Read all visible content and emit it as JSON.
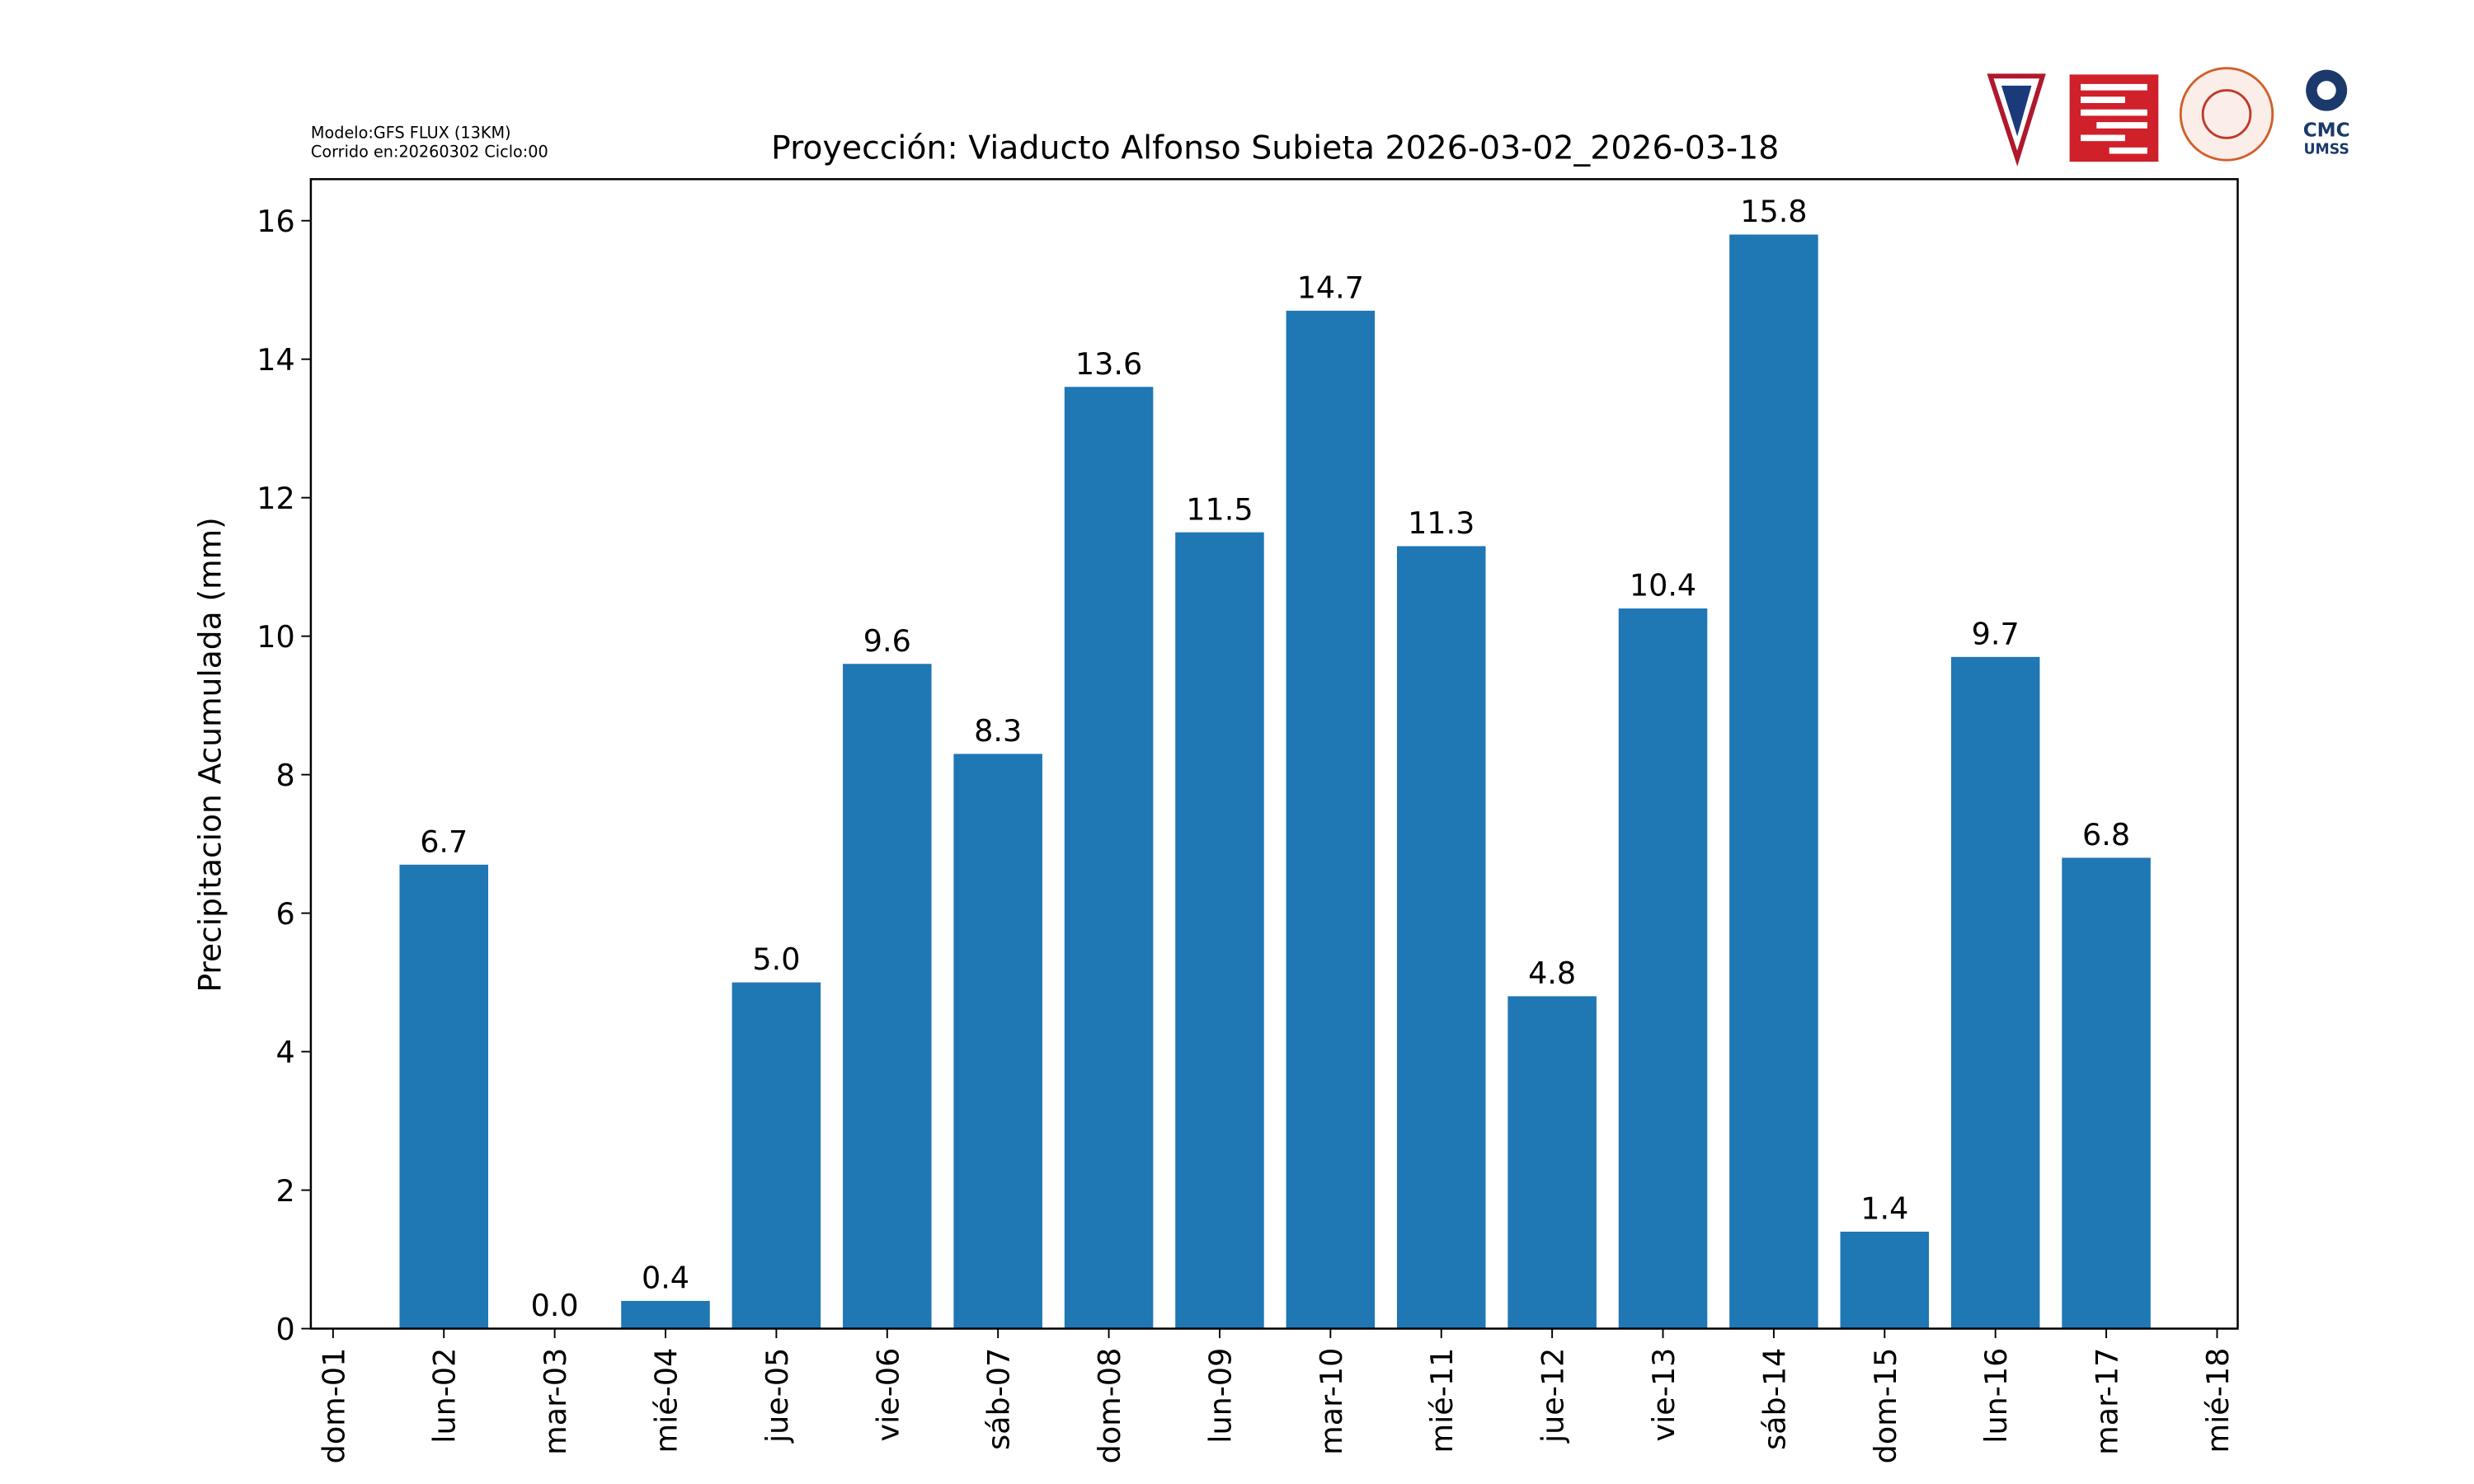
{
  "chart_data": {
    "type": "bar",
    "title": "Proyección: Viaducto Alfonso Subieta  2026-03-02_2026-03-18",
    "model_info": [
      "Modelo:GFS FLUX (13KM)",
      "Corrido en:20260302 Ciclo:00"
    ],
    "logo_text": [
      "CMC",
      "UMSS"
    ],
    "y_label": "Precipitacion Acumulada (mm)",
    "categories": [
      "dom-01",
      "lun-02",
      "mar-03",
      "mié-04",
      "jue-05",
      "vie-06",
      "sáb-07",
      "dom-08",
      "lun-09",
      "mar-10",
      "mié-11",
      "jue-12",
      "vie-13",
      "sáb-14",
      "dom-15",
      "lun-16",
      "mar-17",
      "mié-18"
    ],
    "values": [
      null,
      6.7,
      0,
      0.4,
      5,
      9.6,
      8.3,
      13.6,
      11.5,
      14.7,
      11.3,
      4.8,
      10.4,
      15.8,
      1.4,
      9.7,
      6.8,
      null
    ],
    "value_labels": [
      null,
      "6.7",
      "0.0",
      "0.4",
      "5.0",
      "9.6",
      "8.3",
      "13.6",
      "11.5",
      "14.7",
      "11.3",
      "4.8",
      "10.4",
      "15.8",
      "1.4",
      "9.7",
      "6.8",
      null
    ],
    "color": "#1f77b4",
    "ylim": [
      0,
      16.6
    ],
    "yticks": [
      0,
      2,
      4,
      6,
      8,
      10,
      12,
      14,
      16
    ],
    "grid": false
  }
}
